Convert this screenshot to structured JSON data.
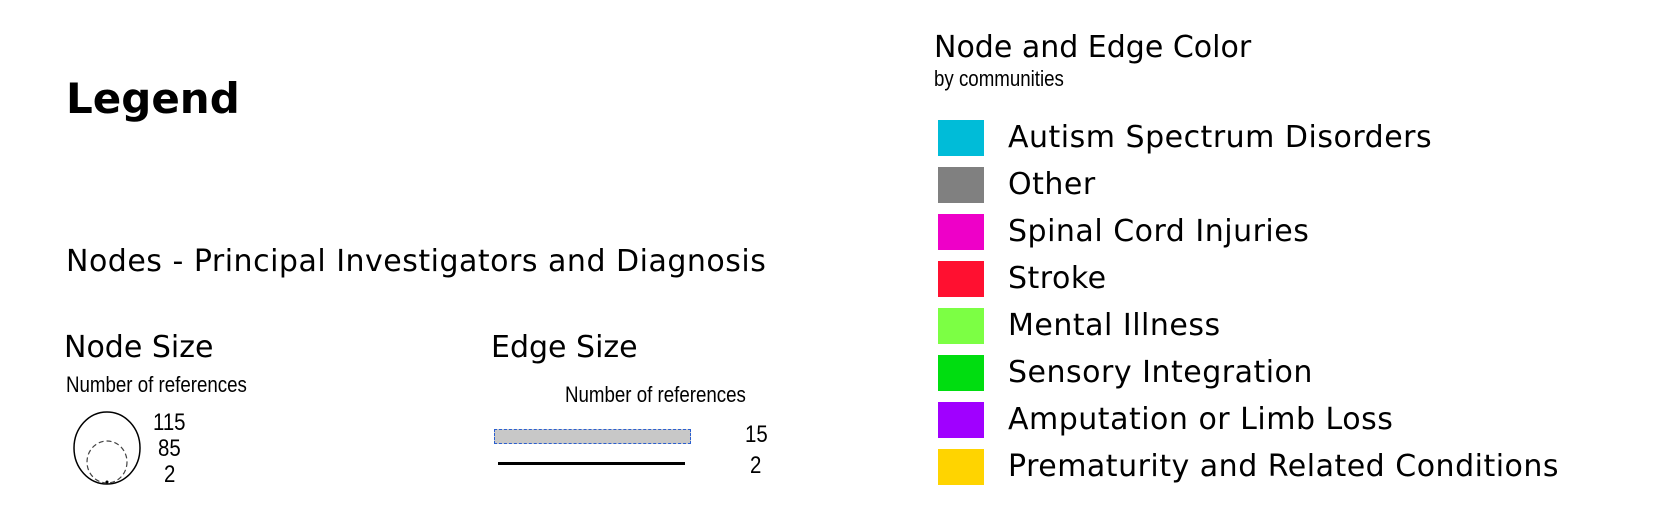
{
  "legend": {
    "title": "Legend",
    "nodes_heading": "Nodes - Principal Investigators and Diagnosis"
  },
  "node_size": {
    "heading": "Node Size",
    "subheading": "Number of references",
    "values": [
      "115",
      "85",
      "2"
    ]
  },
  "edge_size": {
    "heading": "Edge Size",
    "subheading": "Number of references",
    "values": [
      "15",
      "2"
    ]
  },
  "color": {
    "heading": "Node and Edge Color",
    "subheading": "by communities",
    "communities": [
      {
        "label": "Autism Spectrum Disorders",
        "color": "#00bcd8"
      },
      {
        "label": "Other",
        "color": "#808080"
      },
      {
        "label": "Spinal Cord Injuries",
        "color": "#ee00c8"
      },
      {
        "label": "Stroke",
        "color": "#ff1030"
      },
      {
        "label": "Mental Illness",
        "color": "#7cff44"
      },
      {
        "label": "Sensory Integration",
        "color": "#00dd10"
      },
      {
        "label": "Amputation or Limb Loss",
        "color": "#a000ff"
      },
      {
        "label": "Prematurity and Related Conditions",
        "color": "#ffd400"
      }
    ]
  }
}
